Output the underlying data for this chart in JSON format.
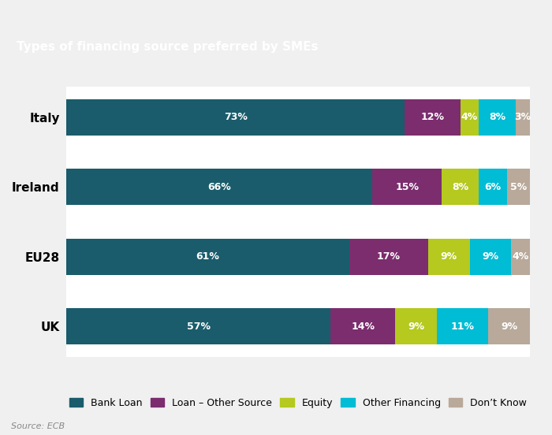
{
  "title": "Types of financing source preferred by SMEs",
  "title_bg_color": "#00B5C8",
  "title_text_color": "#ffffff",
  "source_text": "Source: ECB",
  "fig_bg_color": "#f0f0f0",
  "chart_bg_color": "#ffffff",
  "categories": [
    "Italy",
    "Ireland",
    "EU28",
    "UK"
  ],
  "series": [
    {
      "name": "Bank Loan",
      "color": "#1a5c6b",
      "values": [
        73,
        66,
        61,
        57
      ]
    },
    {
      "name": "Loan – Other Source",
      "color": "#7b2d6e",
      "values": [
        12,
        15,
        17,
        14
      ]
    },
    {
      "name": "Equity",
      "color": "#b5c91f",
      "values": [
        4,
        8,
        9,
        9
      ]
    },
    {
      "name": "Other Financing",
      "color": "#00bcd4",
      "values": [
        8,
        6,
        9,
        11
      ]
    },
    {
      "name": "Don’t Know",
      "color": "#b8a99a",
      "values": [
        3,
        5,
        4,
        9
      ]
    }
  ],
  "bar_height": 0.52,
  "label_fontsize": 9,
  "legend_fontsize": 9,
  "ylabel_fontsize": 11,
  "title_fontsize": 11
}
